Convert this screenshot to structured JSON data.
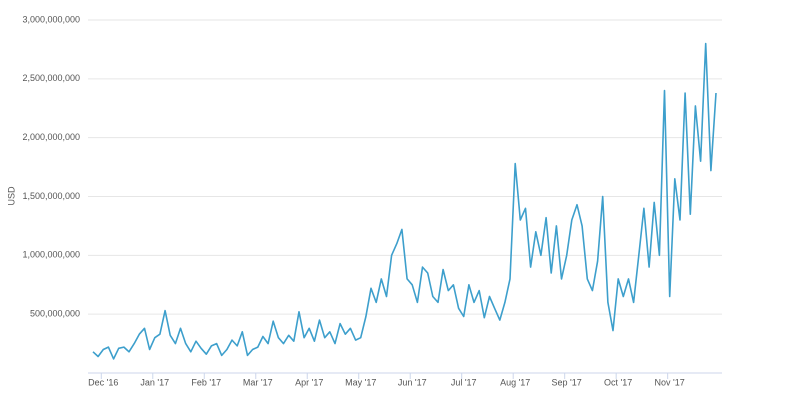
{
  "chart_data": {
    "type": "line",
    "ylabel": "USD",
    "categories": [
      null,
      null,
      "Dec '16",
      null,
      null,
      null,
      null,
      null,
      null,
      null,
      null,
      null,
      "Jan '17",
      null,
      null,
      null,
      null,
      null,
      null,
      null,
      null,
      null,
      "Feb '17",
      null,
      null,
      null,
      null,
      null,
      null,
      null,
      null,
      null,
      "Mar '17",
      null,
      null,
      null,
      null,
      null,
      null,
      null,
      null,
      null,
      "Apr '17",
      null,
      null,
      null,
      null,
      null,
      null,
      null,
      null,
      null,
      "May '17",
      null,
      null,
      null,
      null,
      null,
      null,
      null,
      null,
      null,
      "Jun '17",
      null,
      null,
      null,
      null,
      null,
      null,
      null,
      null,
      null,
      "Jul '17",
      null,
      null,
      null,
      null,
      null,
      null,
      null,
      null,
      null,
      "Aug '17",
      null,
      null,
      null,
      null,
      null,
      null,
      null,
      null,
      null,
      "Sep '17",
      null,
      null,
      null,
      null,
      null,
      null,
      null,
      null,
      null,
      "Oct '17",
      null,
      null,
      null,
      null,
      null,
      null,
      null,
      null,
      null,
      "Nov '17",
      null,
      null,
      null,
      null,
      null,
      null,
      null,
      null,
      null
    ],
    "series": [
      {
        "name": "USD",
        "color": "#3d9fcc",
        "values": [
          180000000,
          140000000,
          200000000,
          220000000,
          120000000,
          210000000,
          220000000,
          180000000,
          250000000,
          330000000,
          380000000,
          200000000,
          300000000,
          330000000,
          530000000,
          320000000,
          250000000,
          380000000,
          250000000,
          180000000,
          270000000,
          210000000,
          160000000,
          230000000,
          250000000,
          150000000,
          200000000,
          280000000,
          230000000,
          350000000,
          150000000,
          200000000,
          220000000,
          310000000,
          250000000,
          440000000,
          300000000,
          250000000,
          320000000,
          270000000,
          520000000,
          300000000,
          380000000,
          270000000,
          450000000,
          300000000,
          350000000,
          250000000,
          420000000,
          330000000,
          380000000,
          280000000,
          300000000,
          480000000,
          720000000,
          600000000,
          800000000,
          650000000,
          1000000000,
          1100000000,
          1220000000,
          800000000,
          750000000,
          600000000,
          900000000,
          850000000,
          650000000,
          600000000,
          880000000,
          700000000,
          750000000,
          550000000,
          480000000,
          750000000,
          600000000,
          700000000,
          470000000,
          650000000,
          550000000,
          450000000,
          600000000,
          800000000,
          1780000000,
          1300000000,
          1400000000,
          900000000,
          1200000000,
          1000000000,
          1320000000,
          850000000,
          1250000000,
          800000000,
          1000000000,
          1300000000,
          1430000000,
          1250000000,
          800000000,
          700000000,
          950000000,
          1500000000,
          600000000,
          360000000,
          800000000,
          650000000,
          800000000,
          600000000,
          1000000000,
          1400000000,
          900000000,
          1450000000,
          1000000000,
          2400000000,
          650000000,
          1650000000,
          1300000000,
          2380000000,
          1350000000,
          2270000000,
          1800000000,
          2800000000,
          1720000000,
          2380000000
        ]
      }
    ],
    "ylim": [
      0,
      3000000000
    ],
    "yticks": [
      {
        "value": 500000000,
        "label": "500,000,000"
      },
      {
        "value": 1000000000,
        "label": "1,000,000,000"
      },
      {
        "value": 1500000000,
        "label": "1,500,000,000"
      },
      {
        "value": 2000000000,
        "label": "2,000,000,000"
      },
      {
        "value": 2500000000,
        "label": "2,500,000,000"
      },
      {
        "value": 3000000000,
        "label": "3,000,000,000"
      }
    ],
    "grid": true
  }
}
